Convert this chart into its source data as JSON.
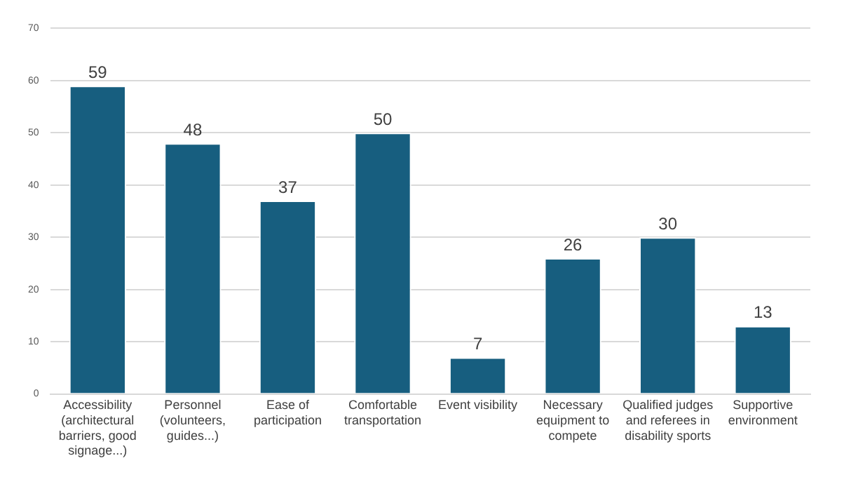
{
  "chart_data": {
    "type": "bar",
    "categories": [
      "Accessibility (architectural barriers, good signage...)",
      "Personnel (volunteers, guides...)",
      "Ease of participation",
      "Comfortable transportation",
      "Event visibility",
      "Necessary equipment to compete",
      "Qualified judges and referees in disability sports",
      "Supportive environment"
    ],
    "values": [
      59,
      48,
      37,
      50,
      7,
      26,
      30,
      13
    ],
    "color": "#175e7f",
    "ylim": [
      0,
      70
    ],
    "yticks": [
      0,
      10,
      20,
      30,
      40,
      50,
      60,
      70
    ],
    "grid": "y",
    "data_labels": true,
    "legend": false
  }
}
